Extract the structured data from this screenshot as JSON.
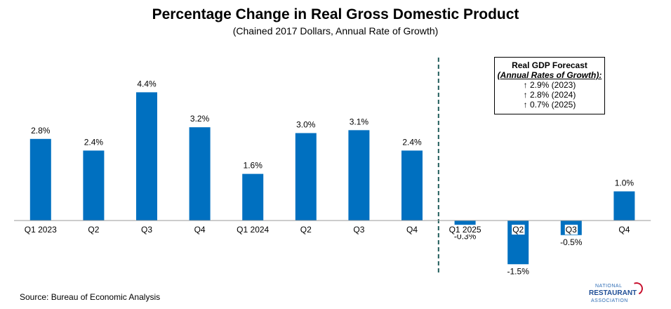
{
  "chart_data": {
    "type": "bar",
    "title": "Percentage Change in Real Gross Domestic Product",
    "subtitle": "(Chained 2017 Dollars, Annual Rate of Growth)",
    "categories": [
      "Q1 2023",
      "Q2",
      "Q3",
      "Q4",
      "Q1 2024",
      "Q2",
      "Q3",
      "Q4",
      "Q1 2025",
      "Q2",
      "Q3",
      "Q4"
    ],
    "values": [
      2.8,
      2.4,
      4.4,
      3.2,
      1.6,
      3.0,
      3.1,
      2.4,
      -0.3,
      -1.5,
      -0.5,
      1.0
    ],
    "data_labels": [
      "2.8%",
      "2.4%",
      "4.4%",
      "3.2%",
      "1.6%",
      "3.0%",
      "3.1%",
      "2.4%",
      "-0.3%",
      "-1.5%",
      "-0.5%",
      "1.0%"
    ],
    "bar_color": "#0070c0",
    "divider_color": "#1f5c5a",
    "divider_after_index": 7
  },
  "forecast": {
    "title": "Real GDP Forecast",
    "subtitle": "(Annual Rates of Growth):",
    "lines": [
      "↑ 2.9% (2023)",
      "↑ 2.8% (2024)",
      "↑ 0.7% (2025)"
    ]
  },
  "source": "Source: Bureau of Economic Analysis",
  "logo": {
    "line1": "NATIONAL",
    "line2": "RESTAURANT",
    "line3": "ASSOCIATION"
  }
}
